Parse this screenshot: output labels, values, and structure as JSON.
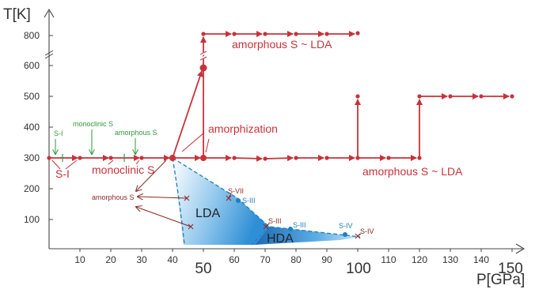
{
  "axes": {
    "y_label": "T[K]",
    "x_label": "P[GPa]",
    "y_ticks": [
      "100",
      "200",
      "300",
      "400",
      "500",
      "600",
      "800"
    ],
    "x_ticks": [
      "10",
      "20",
      "30",
      "40",
      "50",
      "60",
      "70",
      "80",
      "90",
      "100",
      "110",
      "120",
      "130",
      "140",
      "150"
    ],
    "x_major": [
      "50",
      "100",
      "150"
    ]
  },
  "labels": {
    "s1_green": "S-I",
    "mono_green": "monoclinic S",
    "amor_green": "amorphous S",
    "s1_red": "S-I",
    "mono_red": "monoclinic S",
    "amorphization": "amorphization",
    "amor_lda_top": "amorphous S ~ LDA",
    "amor_lda_mid": "amorphous S ~ LDA",
    "amor_s_small": "amorphous S",
    "s7": "S-VII",
    "s3_a": "S-III",
    "s3_b": "S-III",
    "s3_red": "S-III",
    "s4_blue": "S-IV",
    "s4_red": "S-IV",
    "lda": "LDA",
    "hda": "HDA"
  },
  "colors": {
    "red": "#c8323a",
    "green": "#2e9a3a",
    "blue": "#1e7fc0",
    "dark_red": "#8a2a2a",
    "axis": "#444444"
  }
}
